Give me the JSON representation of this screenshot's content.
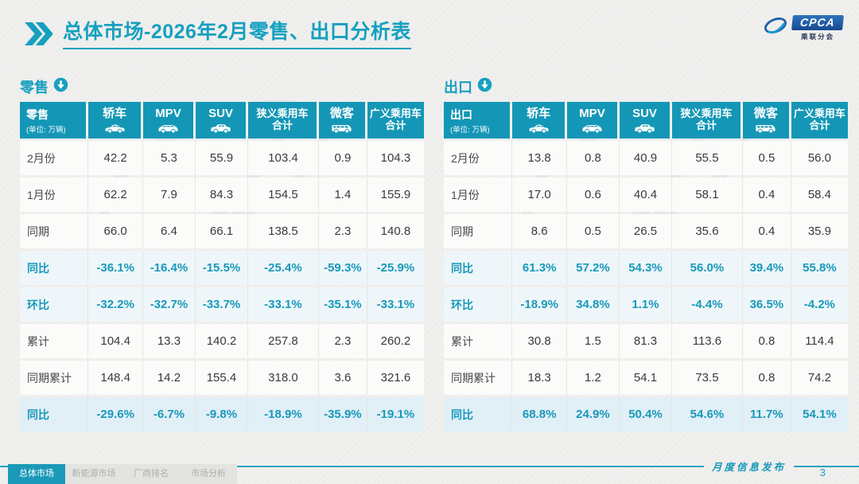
{
  "header": {
    "title": "总体市场-2026年2月零售、出口分析表",
    "logo_badge": "CPCA",
    "logo_caption": "乘联分会"
  },
  "retail": {
    "section_label": "零售",
    "header_title": "零售",
    "unit_note": "(单位: 万辆)",
    "columns": [
      {
        "key": "sedan",
        "label": "轿车",
        "icon": "car-icon"
      },
      {
        "key": "mpv",
        "label": "MPV",
        "icon": "mpv-icon"
      },
      {
        "key": "suv",
        "label": "SUV",
        "icon": "suv-icon"
      },
      {
        "key": "narrow-pv-total",
        "label": "狭义乘用车",
        "sub": "合计"
      },
      {
        "key": "microvan",
        "label": "微客",
        "icon": "van-icon"
      },
      {
        "key": "broad-pv-total",
        "label": "广义乘用车",
        "sub": "合计"
      }
    ],
    "rows": [
      {
        "label": "2月份",
        "style": "normal",
        "values": [
          "42.2",
          "5.3",
          "55.9",
          "103.4",
          "0.9",
          "104.3"
        ]
      },
      {
        "label": "1月份",
        "style": "normal",
        "values": [
          "62.2",
          "7.9",
          "84.3",
          "154.5",
          "1.4",
          "155.9"
        ]
      },
      {
        "label": "同期",
        "style": "normal",
        "values": [
          "66.0",
          "6.4",
          "66.1",
          "138.5",
          "2.3",
          "140.8"
        ]
      },
      {
        "label": "同比",
        "style": "pct",
        "values": [
          "-36.1%",
          "-16.4%",
          "-15.5%",
          "-25.4%",
          "-59.3%",
          "-25.9%"
        ]
      },
      {
        "label": "环比",
        "style": "pct",
        "values": [
          "-32.2%",
          "-32.7%",
          "-33.7%",
          "-33.1%",
          "-35.1%",
          "-33.1%"
        ]
      },
      {
        "label": "累计",
        "style": "normal",
        "values": [
          "104.4",
          "13.3",
          "140.2",
          "257.8",
          "2.3",
          "260.2"
        ]
      },
      {
        "label": "同期累计",
        "style": "normal",
        "values": [
          "148.4",
          "14.2",
          "155.4",
          "318.0",
          "3.6",
          "321.6"
        ]
      },
      {
        "label": "同比",
        "style": "pct-strong",
        "values": [
          "-29.6%",
          "-6.7%",
          "-9.8%",
          "-18.9%",
          "-35.9%",
          "-19.1%"
        ]
      }
    ]
  },
  "export": {
    "section_label": "出口",
    "header_title": "出口",
    "unit_note": "(单位: 万辆)",
    "columns": [
      {
        "key": "sedan",
        "label": "轿车",
        "icon": "car-icon"
      },
      {
        "key": "mpv",
        "label": "MPV",
        "icon": "mpv-icon"
      },
      {
        "key": "suv",
        "label": "SUV",
        "icon": "suv-icon"
      },
      {
        "key": "narrow-pv-total",
        "label": "狭义乘用车",
        "sub": "合计"
      },
      {
        "key": "microvan",
        "label": "微客",
        "icon": "van-icon"
      },
      {
        "key": "broad-pv-total",
        "label": "广义乘用车",
        "sub": "合计"
      }
    ],
    "rows": [
      {
        "label": "2月份",
        "style": "normal",
        "values": [
          "13.8",
          "0.8",
          "40.9",
          "55.5",
          "0.5",
          "56.0"
        ]
      },
      {
        "label": "1月份",
        "style": "normal",
        "values": [
          "17.0",
          "0.6",
          "40.4",
          "58.1",
          "0.4",
          "58.4"
        ]
      },
      {
        "label": "同期",
        "style": "normal",
        "values": [
          "8.6",
          "0.5",
          "26.5",
          "35.6",
          "0.4",
          "35.9"
        ]
      },
      {
        "label": "同比",
        "style": "pct",
        "values": [
          "61.3%",
          "57.2%",
          "54.3%",
          "56.0%",
          "39.4%",
          "55.8%"
        ]
      },
      {
        "label": "环比",
        "style": "pct",
        "values": [
          "-18.9%",
          "34.8%",
          "1.1%",
          "-4.4%",
          "36.5%",
          "-4.2%"
        ]
      },
      {
        "label": "累计",
        "style": "normal",
        "values": [
          "30.8",
          "1.5",
          "81.3",
          "113.6",
          "0.8",
          "114.4"
        ]
      },
      {
        "label": "同期累计",
        "style": "normal",
        "values": [
          "18.3",
          "1.2",
          "54.1",
          "73.5",
          "0.8",
          "74.2"
        ]
      },
      {
        "label": "同比",
        "style": "pct-strong",
        "values": [
          "68.8%",
          "24.9%",
          "50.4%",
          "54.6%",
          "11.7%",
          "54.1%"
        ]
      }
    ]
  },
  "footer": {
    "note": "月度信息发布",
    "page_number": "3",
    "tabs": [
      {
        "label": "总体市场",
        "active": true
      },
      {
        "label": "新能源市场",
        "active": false
      },
      {
        "label": "厂商排名",
        "active": false
      },
      {
        "label": "市场分析",
        "active": false
      }
    ]
  },
  "colors": {
    "accent_teal": "#1497b6",
    "title_teal": "#16a0c0",
    "pct_text": "#1899bb",
    "pct_row_bg": "#eef6f9",
    "pct_strong_row_bg": "#e1eff7",
    "page_bg": "#f0f0ee"
  }
}
